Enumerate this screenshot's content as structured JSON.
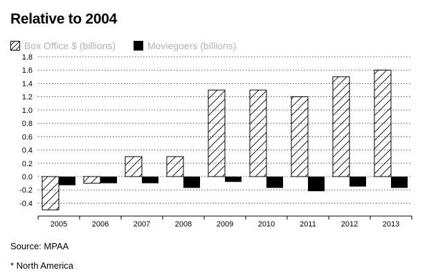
{
  "chart_data": {
    "type": "bar",
    "title": "Relative to 2004",
    "categories": [
      "2005",
      "2006",
      "2007",
      "2008",
      "2009",
      "2010",
      "2011",
      "2012",
      "2013"
    ],
    "series": [
      {
        "name": "Box Office $ (billions)",
        "pattern": "hatched",
        "values": [
          -0.5,
          -0.1,
          0.3,
          0.3,
          1.3,
          1.3,
          1.2,
          1.5,
          1.6
        ]
      },
      {
        "name": "Moviegoers (billions)",
        "pattern": "solid",
        "values": [
          -0.13,
          -0.1,
          -0.1,
          -0.17,
          -0.08,
          -0.17,
          -0.22,
          -0.15,
          -0.17
        ]
      }
    ],
    "ylim": [
      -0.5,
      1.8
    ],
    "yticks": [
      "1.8",
      "1.6",
      "1.4",
      "1.2",
      "1.0",
      "0.8",
      "0.6",
      "0.4",
      "0.2",
      "0.0",
      "-0.2",
      "-0.4"
    ],
    "grid": "dotted",
    "legend_position": "top-left",
    "xlabel": "",
    "ylabel": ""
  },
  "source": "Source: MPAA",
  "footnote": "* North America",
  "colors": {
    "bar_fill": "#000000",
    "hatch_stroke": "#000000",
    "grid": "#555555",
    "legend_text": "#b3b3b3"
  }
}
